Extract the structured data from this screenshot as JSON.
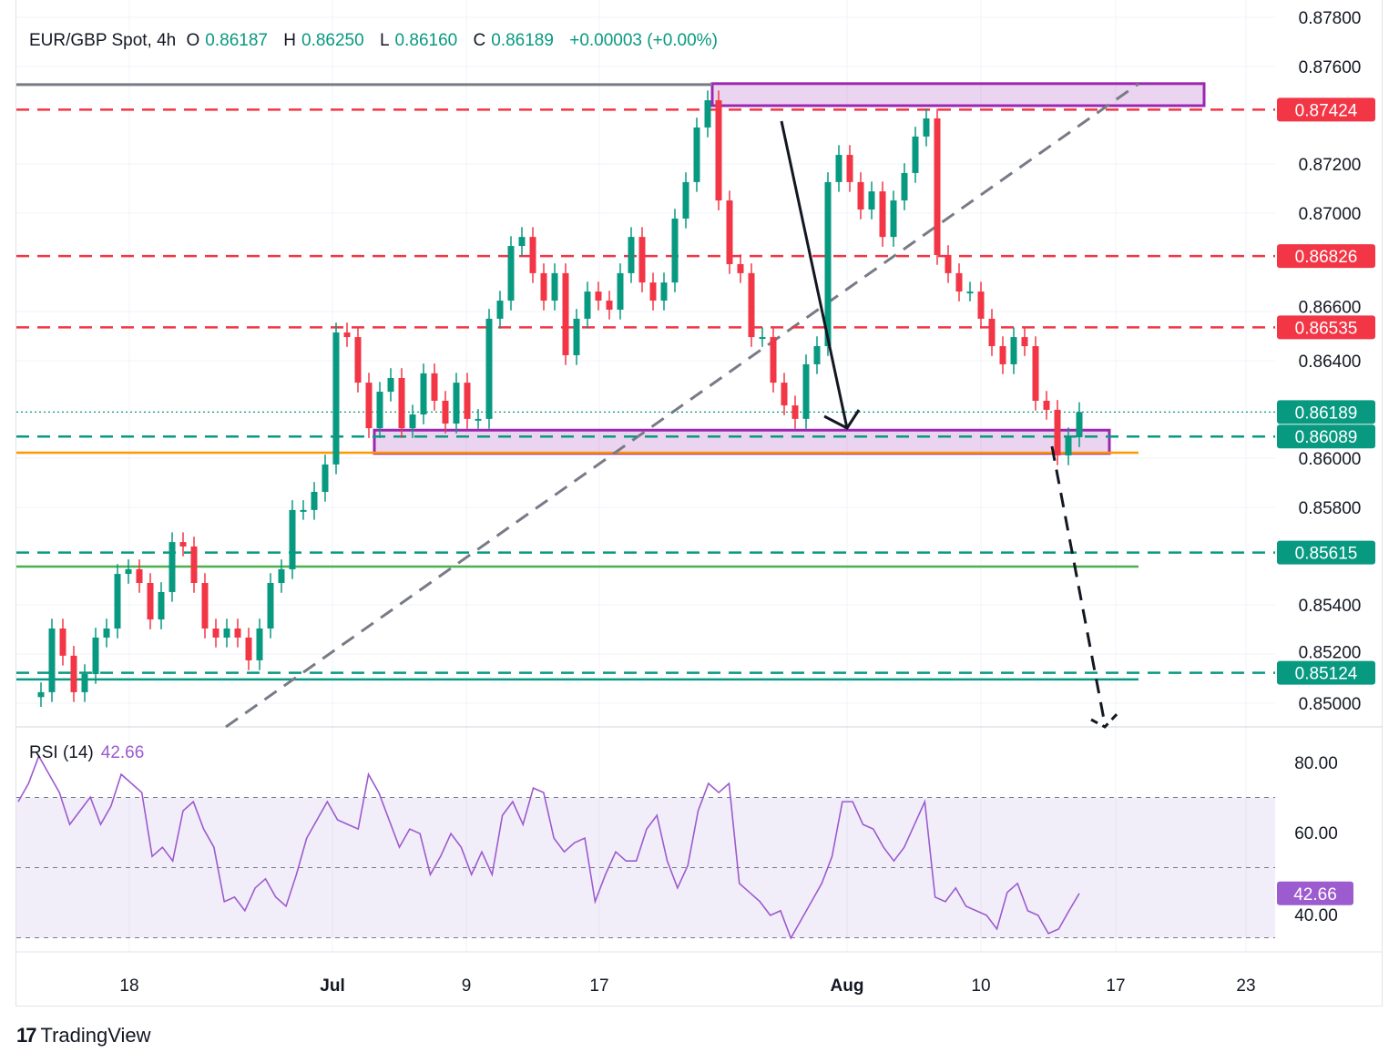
{
  "header": {
    "symbol": "EUR/GBP Spot, 4h",
    "open_label": "O",
    "open": "0.86187",
    "high_label": "H",
    "high": "0.86250",
    "low_label": "L",
    "low": "0.86160",
    "close_label": "C",
    "close": "0.86189",
    "change": "+0.00003 (+0.00%)"
  },
  "rsi": {
    "label": "RSI (14)",
    "value": "42.66"
  },
  "branding": {
    "name": "TradingView"
  },
  "colors": {
    "up": "#089981",
    "down": "#f23645",
    "rsi": "#9c5bce",
    "zone": "#9c27b0",
    "orange": "#ff9800",
    "light_green": "#4caf50"
  },
  "chart_data": [
    {
      "type": "candlestick",
      "title": "EUR/GBP Spot, 4h",
      "ylim": [
        0.849,
        0.8782
      ],
      "y_ticks": [
        "0.87800",
        "0.87600",
        "0.87200",
        "0.87000",
        "0.86600",
        "0.86400",
        "0.86000",
        "0.85800",
        "0.85400",
        "0.85200",
        "0.85000"
      ],
      "x_ticks": [
        "18",
        "Jul",
        "9",
        "17",
        "Aug",
        "10",
        "17",
        "23"
      ],
      "closes": [
        0.85045,
        0.85305,
        0.85194,
        0.85045,
        0.85119,
        0.85268,
        0.85305,
        0.85528,
        0.85547,
        0.85491,
        0.85342,
        0.85454,
        0.85658,
        0.8564,
        0.85491,
        0.85305,
        0.85268,
        0.85305,
        0.85268,
        0.85175,
        0.85305,
        0.85491,
        0.85547,
        0.85789,
        0.85789,
        0.85863,
        0.85975,
        0.86514,
        0.86495,
        0.86309,
        0.86123,
        0.86272,
        0.86328,
        0.86123,
        0.86179,
        0.86347,
        0.86235,
        0.86142,
        0.86309,
        0.86161,
        0.86161,
        0.8657,
        0.86644,
        0.86867,
        0.86904,
        0.86756,
        0.86644,
        0.86756,
        0.86421,
        0.8657,
        0.86681,
        0.86644,
        0.86607,
        0.86756,
        0.86904,
        0.86718,
        0.86644,
        0.86718,
        0.86979,
        0.87128,
        0.87351,
        0.87462,
        0.87053,
        0.86793,
        0.86756,
        0.86495,
        0.86495,
        0.86309,
        0.86216,
        0.86161,
        0.86384,
        0.86458,
        0.87128,
        0.87239,
        0.87128,
        0.87016,
        0.8709,
        0.86904,
        0.87053,
        0.87165,
        0.87314,
        0.87388,
        0.8683,
        0.86756,
        0.86681,
        0.86681,
        0.8657,
        0.86458,
        0.86384,
        0.86495,
        0.86458,
        0.86235,
        0.86198,
        0.86012,
        0.86086,
        0.86189
      ],
      "price_lines": [
        {
          "value": "0.87424",
          "style": "dashed",
          "color": "#f23645"
        },
        {
          "value": "0.86826",
          "style": "dashed",
          "color": "#f23645"
        },
        {
          "value": "0.86535",
          "style": "dashed",
          "color": "#f23645"
        },
        {
          "value": "0.86189",
          "style": "dotted",
          "color": "#089981"
        },
        {
          "value": "0.86089",
          "style": "dashed",
          "color": "#089981"
        },
        {
          "value": "0.85615",
          "style": "dashed",
          "color": "#089981"
        },
        {
          "value": "0.85124",
          "style": "dashed",
          "color": "#089981"
        }
      ],
      "horizontal_lines": [
        {
          "value": 0.87526,
          "color": "#787b86"
        },
        {
          "value": 0.86023,
          "color": "#ff9800"
        },
        {
          "value": 0.85558,
          "color": "#4caf50"
        },
        {
          "value": 0.85097,
          "color": "#089981"
        }
      ],
      "zones": [
        {
          "from": 0.8744,
          "to": 0.8753
        },
        {
          "from": 0.8602,
          "to": 0.86115
        }
      ],
      "grid": true
    },
    {
      "type": "line",
      "title": "RSI (14)",
      "ylim": [
        20,
        88
      ],
      "y_ticks": [
        "80.00",
        "60.00",
        "40.00"
      ],
      "bands": [
        30,
        50,
        70
      ],
      "values": [
        68.8,
        74,
        81.8,
        76.6,
        71.4,
        62.3,
        66.2,
        70.1,
        62.3,
        67.5,
        76.6,
        74,
        71.4,
        53.2,
        55.8,
        51.9,
        66.2,
        68.8,
        61,
        55.8,
        40.3,
        41.6,
        37.7,
        44.2,
        46.8,
        41.6,
        39,
        48,
        58.4,
        63.6,
        68.8,
        63.6,
        62.3,
        61,
        76.6,
        71.4,
        63.6,
        55.8,
        61,
        59.7,
        48,
        53.2,
        59.7,
        55.8,
        48,
        54.5,
        48,
        64.9,
        68.8,
        62.3,
        72.7,
        71.4,
        58.4,
        54.5,
        57.1,
        58.4,
        40.3,
        48,
        54.5,
        51.9,
        51.9,
        61,
        64.9,
        51.9,
        44.2,
        50.6,
        66.2,
        74,
        71.4,
        74,
        45.5,
        42.9,
        40.3,
        36.4,
        37.7,
        29.9,
        35.1,
        40.3,
        45.5,
        53.2,
        68.8,
        68.8,
        62.3,
        61,
        55.8,
        51.9,
        55.8,
        62.3,
        68.8,
        41.6,
        40.3,
        44.2,
        39,
        37.7,
        36.4,
        32.5,
        42.9,
        45.5,
        37.7,
        36.4,
        31.2,
        32.5,
        37.7,
        42.66
      ]
    }
  ]
}
